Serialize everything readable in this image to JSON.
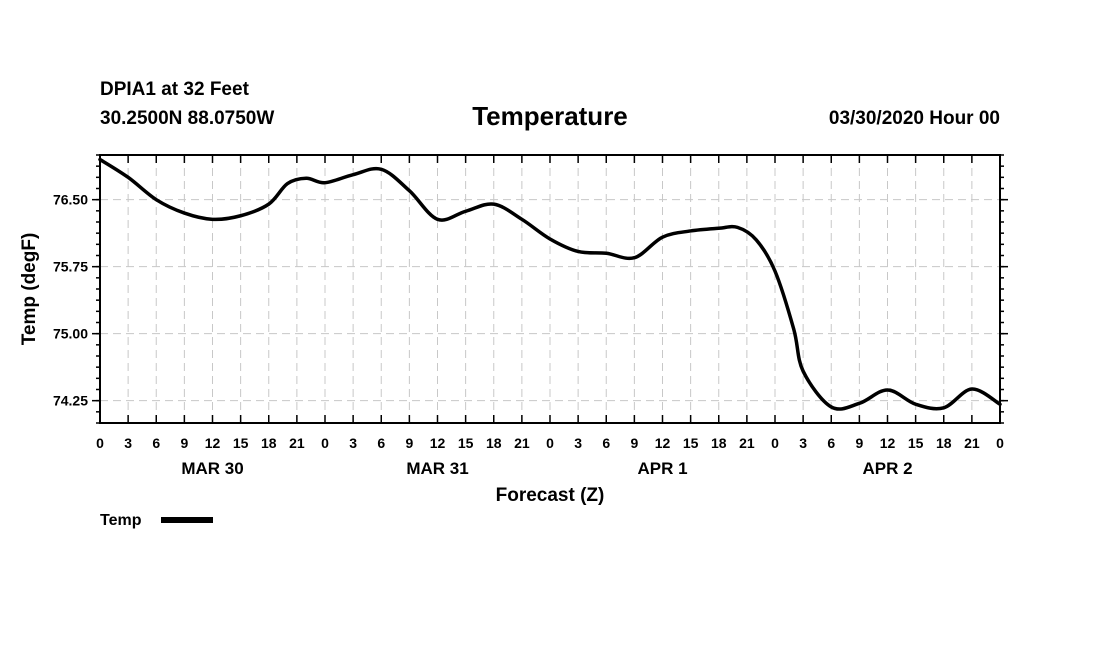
{
  "chart_data": {
    "type": "line",
    "header": {
      "station": "DPIA1 at 32 Feet",
      "location": "30.2500N 88.0750W",
      "title": "Temperature",
      "issued": "03/30/2020 Hour 00"
    },
    "xlabel": "Forecast (Z)",
    "ylabel": "Temp (degF)",
    "xlim": [
      0,
      96
    ],
    "ylim": [
      74.0,
      77.0
    ],
    "x_ticks": [
      0,
      3,
      6,
      9,
      12,
      15,
      18,
      21,
      24,
      27,
      30,
      33,
      36,
      39,
      42,
      45,
      48,
      51,
      54,
      57,
      60,
      63,
      66,
      69,
      72,
      75,
      78,
      81,
      84,
      87,
      90,
      93,
      96
    ],
    "x_tick_labels": [
      "0",
      "3",
      "6",
      "9",
      "12",
      "15",
      "18",
      "21",
      "0",
      "3",
      "6",
      "9",
      "12",
      "15",
      "18",
      "21",
      "0",
      "3",
      "6",
      "9",
      "12",
      "15",
      "18",
      "21",
      "0",
      "3",
      "6",
      "9",
      "12",
      "15",
      "18",
      "21",
      "0"
    ],
    "y_ticks": [
      74.25,
      75.0,
      75.75,
      76.5
    ],
    "y_tick_labels": [
      "74.25",
      "75.00",
      "75.75",
      "76.50"
    ],
    "days": [
      {
        "label": "MAR 30",
        "hour": 12
      },
      {
        "label": "MAR 31",
        "hour": 36
      },
      {
        "label": "APR 1",
        "hour": 60
      },
      {
        "label": "APR 2",
        "hour": 84
      }
    ],
    "legend": {
      "label": "Temp",
      "placement": "bottom-left"
    },
    "series": [
      {
        "name": "Temp",
        "x": [
          0,
          3,
          6,
          9,
          12,
          15,
          18,
          20,
          22,
          24,
          27,
          30,
          33,
          36,
          39,
          42,
          45,
          48,
          51,
          54,
          57,
          60,
          63,
          66,
          68,
          70,
          72,
          74,
          75,
          78,
          81,
          84,
          87,
          90,
          93,
          96
        ],
        "values": [
          76.95,
          76.75,
          76.5,
          76.35,
          76.28,
          76.32,
          76.45,
          76.68,
          76.74,
          76.69,
          76.78,
          76.84,
          76.6,
          76.28,
          76.37,
          76.45,
          76.28,
          76.06,
          75.92,
          75.9,
          75.85,
          76.08,
          76.15,
          76.18,
          76.19,
          76.05,
          75.7,
          75.05,
          74.58,
          74.18,
          74.22,
          74.37,
          74.21,
          74.17,
          74.38,
          74.21
        ]
      }
    ]
  }
}
